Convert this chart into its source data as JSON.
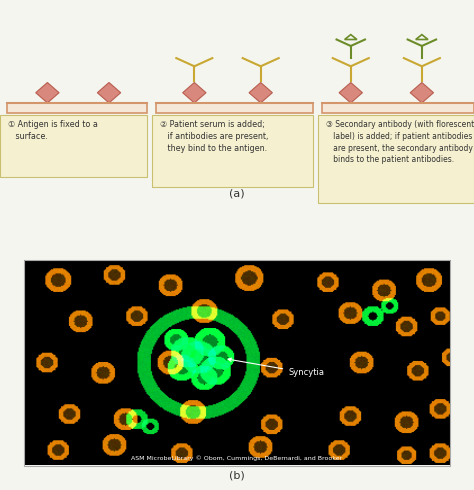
{
  "bg_color": "#f5f5f0",
  "title_a": "(a)",
  "title_b": "(b)",
  "surface_color": "#d4956a",
  "surface_fill": "#f5e8d8",
  "antigen_color": "#d4756a",
  "antibody_primary_color": "#c8a832",
  "antibody_secondary_color": "#6b8c28",
  "label_bg": "#f5f0d0",
  "label_border": "#c8c070",
  "step1_text": "1  Antigen is fixed to a\n    surface.",
  "step2_text": "2  Patient serum is added;\n    if antibodies are present,\n    they bind to the antigen.",
  "step3_text": "3  Secondary antibody (with florescent\n    label) is added; if patient antibodies\n    are present, the secondary antibody\n    binds to the patient antibodies.",
  "credit_text": "ASM MicrobeLibrary © Obom, Cummings, DeBernardi, and Brooker",
  "syncytia_label": "Syncytia"
}
